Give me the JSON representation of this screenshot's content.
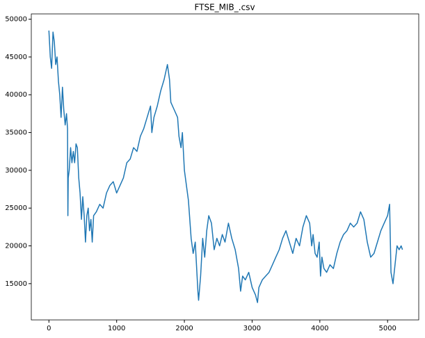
{
  "chart_data": {
    "type": "line",
    "title": "FTSE_MIB_.csv",
    "x": [
      0,
      20,
      40,
      60,
      80,
      100,
      120,
      140,
      160,
      180,
      200,
      220,
      240,
      260,
      275,
      280,
      285,
      300,
      320,
      340,
      360,
      380,
      400,
      420,
      440,
      460,
      480,
      500,
      520,
      540,
      560,
      580,
      600,
      620,
      640,
      660,
      700,
      750,
      800,
      850,
      900,
      950,
      1000,
      1050,
      1100,
      1150,
      1200,
      1250,
      1300,
      1350,
      1400,
      1450,
      1500,
      1520,
      1550,
      1600,
      1650,
      1700,
      1750,
      1780,
      1800,
      1850,
      1900,
      1920,
      1950,
      1970,
      2000,
      2030,
      2060,
      2100,
      2130,
      2160,
      2200,
      2210,
      2240,
      2270,
      2300,
      2330,
      2360,
      2400,
      2440,
      2480,
      2520,
      2560,
      2600,
      2650,
      2700,
      2750,
      2800,
      2830,
      2860,
      2900,
      2950,
      3000,
      3050,
      3080,
      3100,
      3150,
      3200,
      3250,
      3300,
      3350,
      3400,
      3450,
      3500,
      3550,
      3600,
      3650,
      3700,
      3750,
      3800,
      3850,
      3880,
      3900,
      3930,
      3960,
      3990,
      4010,
      4030,
      4060,
      4100,
      4150,
      4200,
      4250,
      4300,
      4350,
      4400,
      4450,
      4500,
      4550,
      4600,
      4650,
      4700,
      4750,
      4800,
      4850,
      4900,
      4950,
      5000,
      5030,
      5050,
      5080,
      5110,
      5140,
      5170,
      5200,
      5220
    ],
    "series": [
      {
        "color": "#1f77b4",
        "values": [
          48500,
          45000,
          43500,
          48300,
          47000,
          44000,
          45000,
          41800,
          40000,
          37000,
          41000,
          38000,
          36000,
          37500,
          35500,
          24000,
          29000,
          30000,
          33000,
          31000,
          32500,
          31000,
          33500,
          33000,
          29000,
          27000,
          23500,
          26500,
          24000,
          20500,
          24000,
          25000,
          22000,
          23500,
          20500,
          24000,
          24500,
          25500,
          25000,
          27000,
          28000,
          28500,
          27000,
          28000,
          29000,
          31000,
          31500,
          33000,
          32500,
          34500,
          35500,
          37000,
          38500,
          35000,
          37000,
          38500,
          40500,
          42000,
          44000,
          42000,
          39000,
          38000,
          37000,
          34500,
          33000,
          35000,
          30000,
          28000,
          26000,
          21000,
          19000,
          20500,
          14000,
          12800,
          16000,
          21000,
          18500,
          22000,
          24000,
          23000,
          19500,
          21000,
          20000,
          21500,
          20500,
          23000,
          21000,
          19500,
          17000,
          14000,
          16000,
          15500,
          16500,
          14500,
          13500,
          12500,
          14500,
          15500,
          16000,
          16500,
          17500,
          18500,
          19500,
          21000,
          22000,
          20500,
          19000,
          21000,
          20000,
          22500,
          24000,
          23000,
          20000,
          21500,
          19000,
          18500,
          20500,
          16000,
          18500,
          17000,
          16500,
          17500,
          17000,
          19000,
          20500,
          21500,
          22000,
          23000,
          22500,
          23000,
          24500,
          23500,
          20500,
          18500,
          19000,
          20500,
          22000,
          23000,
          24000,
          25500,
          16500,
          15000,
          17500,
          20000,
          19500,
          20000,
          19500
        ]
      }
    ],
    "xlim": [
      -260,
      5460
    ],
    "ylim": [
      10200,
      50700
    ],
    "xticks": [
      0,
      1000,
      2000,
      3000,
      4000,
      5000
    ],
    "yticks": [
      15000,
      20000,
      25000,
      30000,
      35000,
      40000,
      45000,
      50000
    ]
  }
}
